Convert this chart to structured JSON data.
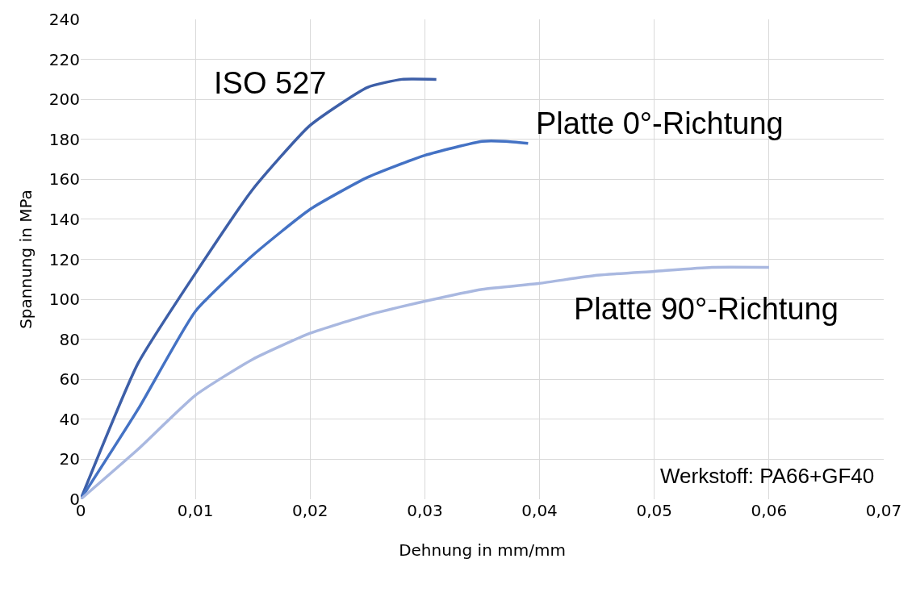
{
  "chart_data": {
    "type": "line",
    "xlabel": "Dehnung in mm/mm",
    "ylabel": "Spannung in MPa",
    "xlim": [
      0,
      0.07
    ],
    "xticks": [
      0,
      {
        "value": 0.01,
        "label": "0,01"
      },
      {
        "value": 0.02,
        "label": "0,02"
      },
      {
        "value": 0.03,
        "label": "0,03"
      },
      {
        "value": 0.04,
        "label": "0,04"
      },
      {
        "value": 0.05,
        "label": "0,05"
      },
      {
        "value": 0.06,
        "label": "0,06"
      },
      {
        "value": 0.07,
        "label": "0,07"
      }
    ],
    "ylim": [
      0,
      240
    ],
    "yticks": [
      0,
      20,
      40,
      60,
      80,
      100,
      120,
      140,
      160,
      180,
      200,
      220,
      240
    ],
    "grid": true,
    "marker": "none",
    "line_style": "solid",
    "series": [
      {
        "name": "ISO 527",
        "color": "#3d5fa8",
        "x": [
          0,
          0.005,
          0.01,
          0.015,
          0.02,
          0.025,
          0.028,
          0.031
        ],
        "values": [
          0,
          68,
          113,
          155,
          187,
          206,
          210,
          210
        ]
      },
      {
        "name": "Platte 0°-Richtung",
        "color": "#4472c4",
        "x": [
          0,
          0.005,
          0.01,
          0.015,
          0.02,
          0.025,
          0.03,
          0.035,
          0.037,
          0.039
        ],
        "values": [
          0,
          45,
          94,
          122,
          145,
          161,
          172,
          179,
          179,
          178
        ]
      },
      {
        "name": "Platte 90°-Richtung",
        "color": "#a9b8e0",
        "x": [
          0,
          0.005,
          0.01,
          0.015,
          0.02,
          0.025,
          0.03,
          0.035,
          0.04,
          0.045,
          0.05,
          0.055,
          0.06
        ],
        "values": [
          0,
          25,
          52,
          70,
          83,
          92,
          99,
          105,
          108,
          112,
          114,
          116,
          116
        ]
      }
    ],
    "annotations": [
      "Werkstoff: PA66+GF40"
    ]
  }
}
